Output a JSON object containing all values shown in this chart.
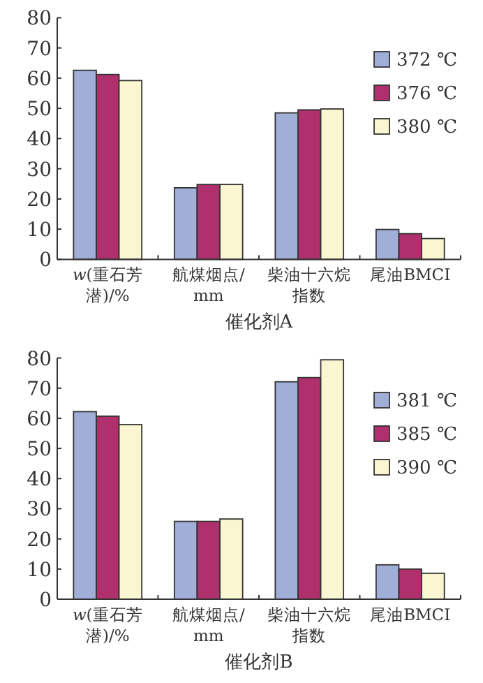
{
  "chart_data": [
    {
      "type": "bar",
      "title": "催化剂A",
      "categories": [
        "*w*(重石芳潜)/%",
        "航煤烟点/mm",
        "柴油十六烷指数",
        "尾油BMCI"
      ],
      "series": [
        {
          "name": "372 ℃",
          "color": "#a0aed8",
          "values": [
            62.6,
            23.7,
            48.5,
            9.9
          ]
        },
        {
          "name": "376 ℃",
          "color": "#b0306e",
          "values": [
            61.2,
            24.8,
            49.5,
            8.5
          ]
        },
        {
          "name": "380 ℃",
          "color": "#fbf6d2",
          "values": [
            59.2,
            24.8,
            49.8,
            6.9
          ]
        }
      ],
      "ylim": [
        0,
        80
      ],
      "yticks": [
        0,
        10,
        20,
        30,
        40,
        50,
        60,
        70,
        80
      ],
      "grid": false,
      "legend": "top right"
    },
    {
      "type": "bar",
      "title": "催化剂B",
      "categories": [
        "*w*(重石芳潜)/%",
        "航煤烟点/mm",
        "柴油十六烷指数",
        "尾油BMCI"
      ],
      "series": [
        {
          "name": "381 ℃",
          "color": "#a0aed8",
          "values": [
            62.2,
            25.8,
            72.1,
            11.4
          ]
        },
        {
          "name": "385 ℃",
          "color": "#b0306e",
          "values": [
            60.7,
            25.8,
            73.5,
            10.0
          ]
        },
        {
          "name": "390 ℃",
          "color": "#fbf6d2",
          "values": [
            57.9,
            26.6,
            79.4,
            8.6
          ]
        }
      ],
      "ylim": [
        0,
        80
      ],
      "yticks": [
        0,
        10,
        20,
        30,
        40,
        50,
        60,
        70,
        80
      ],
      "grid": false,
      "legend": "top right"
    }
  ]
}
